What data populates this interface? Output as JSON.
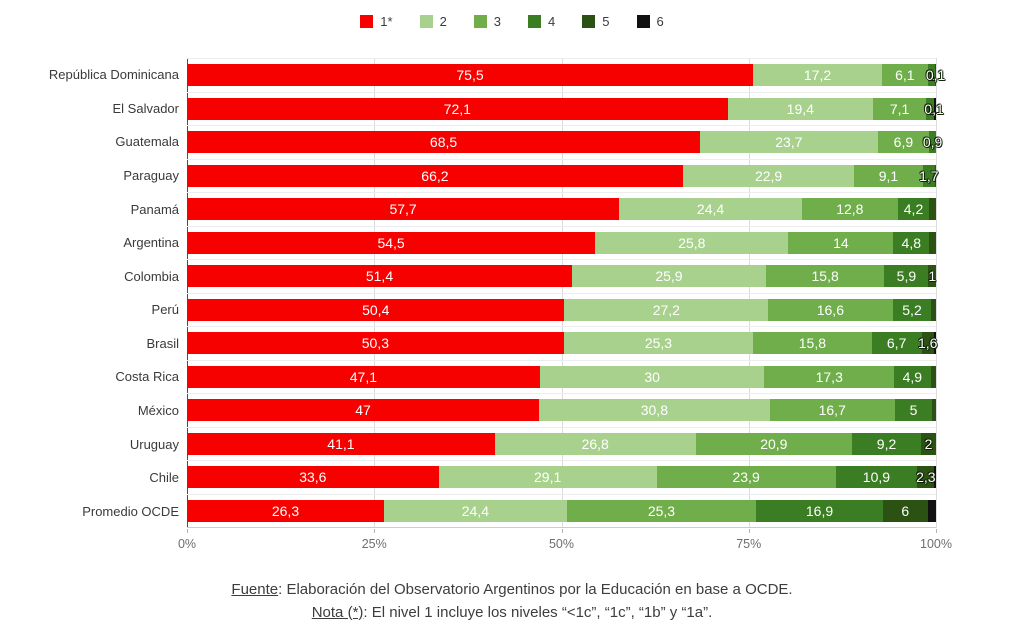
{
  "legend": {
    "items": [
      {
        "label": "1*",
        "color": "#f60000"
      },
      {
        "label": "2",
        "color": "#a9d18e"
      },
      {
        "label": "3",
        "color": "#6fae4b"
      },
      {
        "label": "4",
        "color": "#3a7d22"
      },
      {
        "label": "5",
        "color": "#2b5113"
      },
      {
        "label": "6",
        "color": "#111111"
      }
    ]
  },
  "chart_data": {
    "type": "bar",
    "variant": "horizontal-stacked-100",
    "title": "",
    "legend_position": "top",
    "grid": true,
    "categories": [
      "República Dominicana",
      "El Salvador",
      "Guatemala",
      "Paraguay",
      "Panamá",
      "Argentina",
      "Colombia",
      "Perú",
      "Brasil",
      "Costa Rica",
      "México",
      "Uruguay",
      "Chile",
      "Promedio OCDE"
    ],
    "series": [
      {
        "name": "1*",
        "color": "#f60000",
        "values": [
          75.5,
          72.1,
          68.5,
          66.2,
          57.7,
          54.5,
          51.4,
          50.4,
          50.3,
          47.1,
          47,
          41.1,
          33.6,
          26.3
        ],
        "labels": [
          "75,5",
          "72,1",
          "68,5",
          "66,2",
          "57,7",
          "54,5",
          "51,4",
          "50,4",
          "50,3",
          "47,1",
          "47",
          "41,1",
          "33,6",
          "26,3"
        ]
      },
      {
        "name": "2",
        "color": "#a9d18e",
        "values": [
          17.2,
          19.4,
          23.7,
          22.9,
          24.4,
          25.8,
          25.9,
          27.2,
          25.3,
          30,
          30.8,
          26.8,
          29.1,
          24.4
        ],
        "labels": [
          "17,2",
          "19,4",
          "23,7",
          "22,9",
          "24,4",
          "25,8",
          "25,9",
          "27,2",
          "25,3",
          "30",
          "30,8",
          "26,8",
          "29,1",
          "24,4"
        ]
      },
      {
        "name": "3",
        "color": "#6fae4b",
        "values": [
          6.1,
          7.1,
          6.9,
          9.1,
          12.8,
          14,
          15.8,
          16.6,
          15.8,
          17.3,
          16.7,
          20.9,
          23.9,
          25.3
        ],
        "labels": [
          "6,1",
          "7,1",
          "6,9",
          "9,1",
          "12,8",
          "14",
          "15,8",
          "16,6",
          "15,8",
          "17,3",
          "16,7",
          "20,9",
          "23,9",
          "25,3"
        ]
      },
      {
        "name": "4",
        "color": "#3a7d22",
        "values": [
          1,
          1,
          0.9,
          1.7,
          4.2,
          4.8,
          5.9,
          5.2,
          6.7,
          4.9,
          5,
          9.2,
          10.9,
          16.9
        ],
        "labels": [
          "1",
          "1",
          "0,9",
          "1,7",
          "4,2",
          "4,8",
          "5,9",
          "5,2",
          "6,7",
          "4,9",
          "5",
          "9,2",
          "10,9",
          "16,9"
        ]
      },
      {
        "name": "5",
        "color": "#2b5113",
        "values": [
          0.1,
          0.1,
          0,
          0.1,
          0.9,
          0.9,
          1,
          0.6,
          1.6,
          0.7,
          0.5,
          2,
          2.3,
          6
        ],
        "labels": [
          "0,1",
          "0,1",
          "",
          "",
          "",
          "",
          "1",
          "",
          "1,6",
          "",
          "",
          "2",
          "2,3",
          "6"
        ]
      },
      {
        "name": "6",
        "color": "#111111",
        "values": [
          0,
          0.2,
          0,
          0,
          0,
          0,
          0,
          0,
          0.3,
          0,
          0,
          0,
          0.2,
          1.1
        ],
        "labels": [
          "",
          "",
          "",
          "",
          "",
          "",
          "",
          "",
          "",
          "",
          "",
          "",
          "",
          ""
        ]
      }
    ],
    "x_axis": {
      "min": 0,
      "max": 100,
      "ticks": [
        {
          "pos": 0,
          "label": "0%"
        },
        {
          "pos": 25,
          "label": "25%"
        },
        {
          "pos": 50,
          "label": "50%"
        },
        {
          "pos": 75,
          "label": "75%"
        },
        {
          "pos": 100,
          "label": "100%"
        }
      ]
    }
  },
  "footer": {
    "source_label": "Fuente",
    "source_rest": ": Elaboración del Observatorio Argentinos por la Educación en base a OCDE.",
    "note_label": "Nota (*)",
    "note_rest": ": El nivel 1 incluye los niveles “<1c”, “1c”, “1b” y “1a”."
  }
}
